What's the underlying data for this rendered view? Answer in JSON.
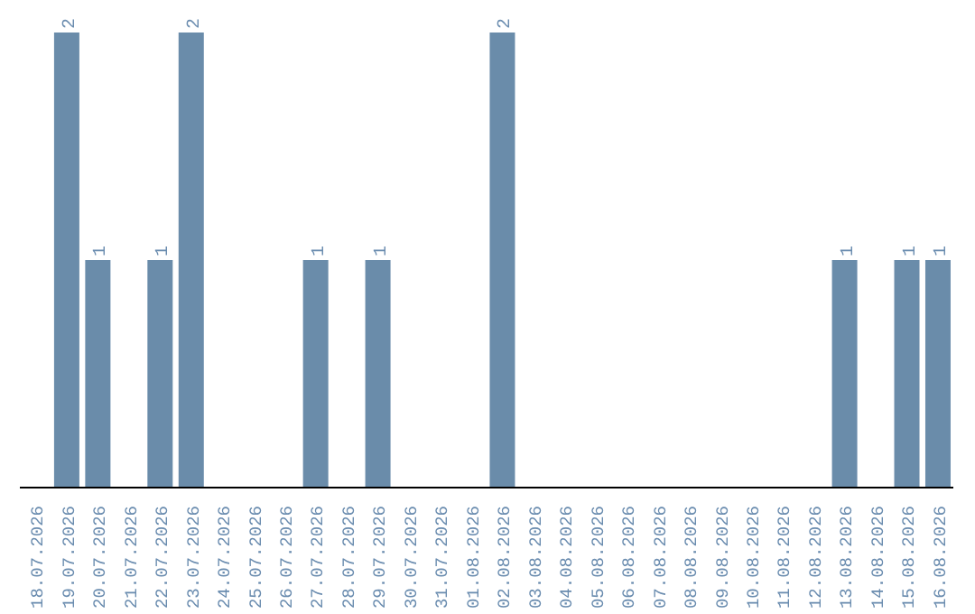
{
  "chart_data": {
    "type": "bar",
    "categories": [
      "18.07.2026",
      "19.07.2026",
      "20.07.2026",
      "21.07.2026",
      "22.07.2026",
      "23.07.2026",
      "24.07.2026",
      "25.07.2026",
      "26.07.2026",
      "27.07.2026",
      "28.07.2026",
      "29.07.2026",
      "30.07.2026",
      "31.07.2026",
      "01.08.2026",
      "02.08.2026",
      "03.08.2026",
      "04.08.2026",
      "05.08.2026",
      "06.08.2026",
      "07.08.2026",
      "08.08.2026",
      "09.08.2026",
      "10.08.2026",
      "11.08.2026",
      "12.08.2026",
      "13.08.2026",
      "14.08.2026",
      "15.08.2026",
      "16.08.2026"
    ],
    "values": [
      0,
      2,
      1,
      0,
      1,
      2,
      0,
      0,
      0,
      1,
      0,
      1,
      0,
      0,
      0,
      2,
      0,
      0,
      0,
      0,
      0,
      0,
      0,
      0,
      0,
      0,
      1,
      0,
      1,
      1
    ],
    "value_labels": [
      null,
      "2",
      "1",
      null,
      "1",
      "2",
      null,
      null,
      null,
      "1",
      null,
      "1",
      null,
      null,
      null,
      "2",
      null,
      null,
      null,
      null,
      null,
      null,
      null,
      null,
      null,
      null,
      "1",
      null,
      "1",
      "1"
    ],
    "color": "#6a8caa",
    "grid": false,
    "legend": false
  }
}
